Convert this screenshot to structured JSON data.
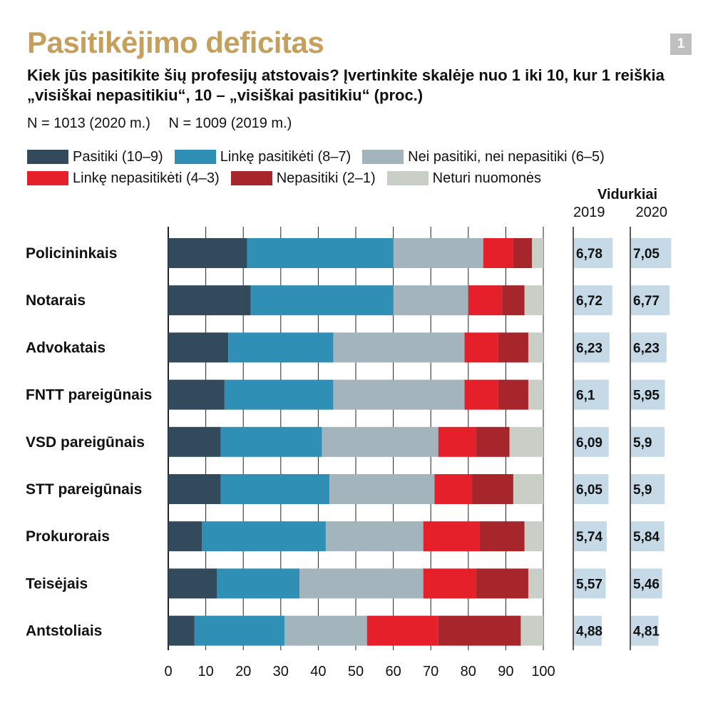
{
  "header": {
    "title": "Pasitikėjimo deficitas",
    "badge": "1",
    "subtitle": "Kiek jūs pasitikite šių profesijų atstovais? Įvertinkite skalėje nuo 1 iki 10, kur 1 reiškia „visiškai nepasitikiu“, 10 – „visiškai pasitikiu“ (proc.)",
    "sample_2020": "N = 1013 (2020 m.)",
    "sample_2019": "N = 1009 (2019 m.)"
  },
  "legend": [
    {
      "label": "Pasitiki (10–9)",
      "color": "#334a5c"
    },
    {
      "label": "Linkę pasitikėti (8–7)",
      "color": "#2f8fb5"
    },
    {
      "label": "Nei pasitiki, nei nepasitiki (6–5)",
      "color": "#a3b4bd"
    },
    {
      "label": "Linkę nepasitikėti (4–3)",
      "color": "#e5202a"
    },
    {
      "label": "Nepasitiki (2–1)",
      "color": "#a6262b"
    },
    {
      "label": "Neturi nuomonės",
      "color": "#c9cfc7"
    }
  ],
  "averages": {
    "title": "Vidurkiai",
    "year_a": "2019",
    "year_b": "2020",
    "bar_color": "#c5d9e6",
    "max_scale": 10
  },
  "chart_data": {
    "type": "bar",
    "orientation": "horizontal",
    "stacked": true,
    "xlim": [
      0,
      100
    ],
    "xticks": [
      "0",
      "10",
      "20",
      "30",
      "40",
      "50",
      "60",
      "70",
      "80",
      "90",
      "100"
    ],
    "grid": true,
    "categories": [
      "Policininkais",
      "Notarais",
      "Advokatais",
      "FNTT pareigūnais",
      "VSD pareigūnais",
      "STT pareigūnais",
      "Prokurorais",
      "Teisėjais",
      "Antstoliais"
    ],
    "series": [
      {
        "name": "Pasitiki (10–9)",
        "values": [
          21,
          22,
          16,
          15,
          14,
          14,
          9,
          13,
          7
        ]
      },
      {
        "name": "Linkę pasitikėti (8–7)",
        "values": [
          39,
          38,
          28,
          29,
          27,
          29,
          33,
          22,
          24
        ]
      },
      {
        "name": "Nei pasitiki, nei nepasitiki (6–5)",
        "values": [
          24,
          20,
          35,
          35,
          31,
          28,
          26,
          33,
          22
        ]
      },
      {
        "name": "Linkę nepasitikėti (4–3)",
        "values": [
          8,
          9,
          9,
          9,
          10,
          10,
          15,
          14,
          19
        ]
      },
      {
        "name": "Nepasitiki (2–1)",
        "values": [
          5,
          6,
          8,
          8,
          9,
          11,
          12,
          14,
          22
        ]
      },
      {
        "name": "Neturi nuomonės",
        "values": [
          3,
          5,
          4,
          4,
          9,
          8,
          5,
          4,
          6
        ]
      }
    ],
    "averages_2019": [
      6.78,
      6.72,
      6.23,
      6.1,
      6.09,
      6.05,
      5.74,
      5.57,
      4.88
    ],
    "averages_2020": [
      7.05,
      6.77,
      6.23,
      5.95,
      5.9,
      5.9,
      5.84,
      5.46,
      4.81
    ],
    "averages_2019_text": [
      "6,78",
      "6,72",
      "6,23",
      "6,1",
      "6,09",
      "6,05",
      "5,74",
      "5,57",
      "4,88"
    ],
    "averages_2020_text": [
      "7,05",
      "6,77",
      "6,23",
      "5,95",
      "5,9",
      "5,9",
      "5,84",
      "5,46",
      "4,81"
    ]
  }
}
